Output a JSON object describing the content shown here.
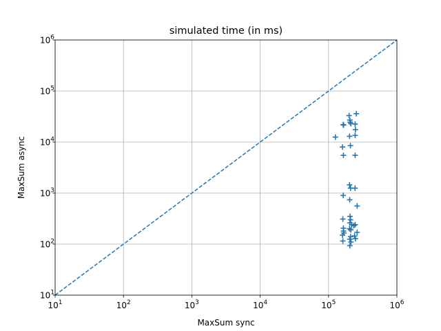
{
  "chart_data": {
    "type": "scatter",
    "title": "simulated time (in ms)",
    "xlabel": "MaxSum sync",
    "ylabel": "MaxSum async",
    "xscale": "log",
    "yscale": "log",
    "xlim": [
      10,
      1000000
    ],
    "ylim": [
      10,
      1000000
    ],
    "xticks": [
      {
        "base": "10",
        "exp": "1"
      },
      {
        "base": "10",
        "exp": "2"
      },
      {
        "base": "10",
        "exp": "3"
      },
      {
        "base": "10",
        "exp": "4"
      },
      {
        "base": "10",
        "exp": "5"
      },
      {
        "base": "10",
        "exp": "6"
      }
    ],
    "yticks": [
      {
        "base": "10",
        "exp": "1"
      },
      {
        "base": "10",
        "exp": "2"
      },
      {
        "base": "10",
        "exp": "3"
      },
      {
        "base": "10",
        "exp": "4"
      },
      {
        "base": "10",
        "exp": "5"
      },
      {
        "base": "10",
        "exp": "6"
      }
    ],
    "grid": true,
    "marker": "+",
    "series_color": "#1f77b4",
    "reference_line": {
      "style": "dashed",
      "x": [
        10,
        1000000
      ],
      "y": [
        10,
        1000000
      ]
    },
    "points": [
      {
        "x": 164000,
        "y": 22000
      },
      {
        "x": 166000,
        "y": 21500
      },
      {
        "x": 200000,
        "y": 33000
      },
      {
        "x": 205000,
        "y": 27000
      },
      {
        "x": 207000,
        "y": 24500
      },
      {
        "x": 212000,
        "y": 23000
      },
      {
        "x": 245000,
        "y": 22500
      },
      {
        "x": 255000,
        "y": 36000
      },
      {
        "x": 247000,
        "y": 17500
      },
      {
        "x": 245000,
        "y": 13500
      },
      {
        "x": 203000,
        "y": 13000
      },
      {
        "x": 126000,
        "y": 12500
      },
      {
        "x": 209000,
        "y": 8500
      },
      {
        "x": 160000,
        "y": 8000
      },
      {
        "x": 165000,
        "y": 5500
      },
      {
        "x": 245000,
        "y": 5500
      },
      {
        "x": 203000,
        "y": 1450
      },
      {
        "x": 210000,
        "y": 1250
      },
      {
        "x": 244000,
        "y": 1250
      },
      {
        "x": 164000,
        "y": 900
      },
      {
        "x": 204000,
        "y": 740
      },
      {
        "x": 262000,
        "y": 560
      },
      {
        "x": 162000,
        "y": 310
      },
      {
        "x": 206000,
        "y": 350
      },
      {
        "x": 210000,
        "y": 300
      },
      {
        "x": 205000,
        "y": 260
      },
      {
        "x": 218000,
        "y": 240
      },
      {
        "x": 245000,
        "y": 240
      },
      {
        "x": 234000,
        "y": 230
      },
      {
        "x": 165000,
        "y": 205
      },
      {
        "x": 203000,
        "y": 200
      },
      {
        "x": 212000,
        "y": 190
      },
      {
        "x": 166000,
        "y": 180
      },
      {
        "x": 168000,
        "y": 165
      },
      {
        "x": 262000,
        "y": 170
      },
      {
        "x": 160000,
        "y": 150
      },
      {
        "x": 240000,
        "y": 145
      },
      {
        "x": 210000,
        "y": 140
      },
      {
        "x": 205000,
        "y": 125
      },
      {
        "x": 247000,
        "y": 128
      },
      {
        "x": 162000,
        "y": 115
      },
      {
        "x": 213000,
        "y": 110
      },
      {
        "x": 205000,
        "y": 93
      }
    ]
  }
}
